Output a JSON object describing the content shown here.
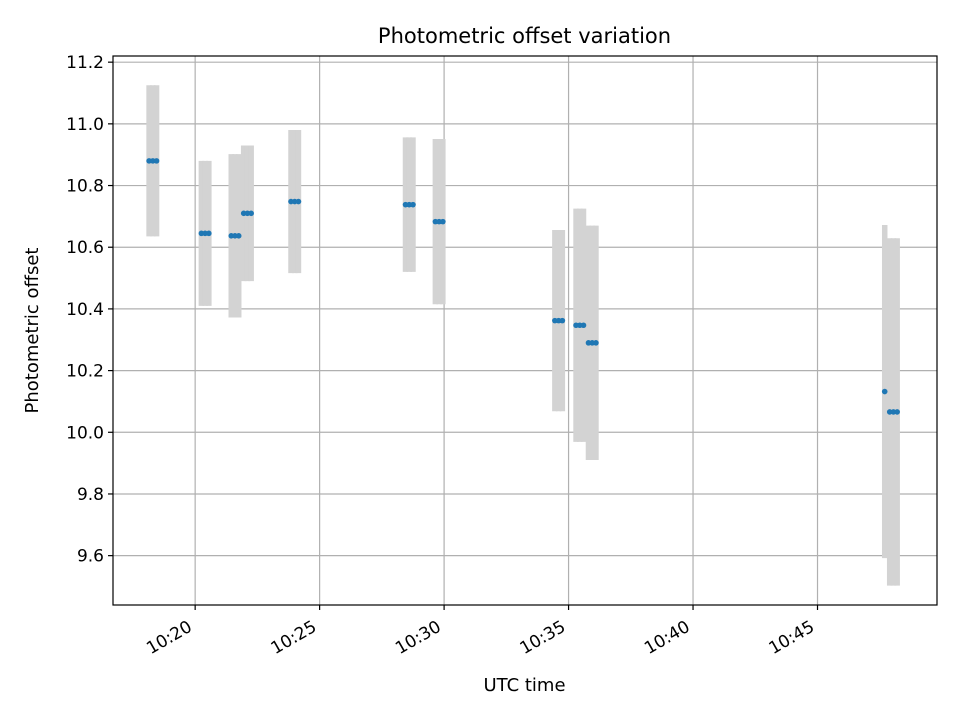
{
  "chart_data": {
    "type": "scatter",
    "title": "Photometric offset variation",
    "xlabel": "UTC time",
    "ylabel": "Photometric offset",
    "x_unit": "minutes after 10:00 UTC",
    "xlim": [
      16.7,
      49.8
    ],
    "ylim": [
      9.44,
      11.22
    ],
    "grid": true,
    "x_ticks": [
      {
        "value": 20,
        "label": "10:20"
      },
      {
        "value": 25,
        "label": "10:25"
      },
      {
        "value": 30,
        "label": "10:30"
      },
      {
        "value": 35,
        "label": "10:35"
      },
      {
        "value": 40,
        "label": "10:40"
      },
      {
        "value": 45,
        "label": "10:45"
      }
    ],
    "y_ticks": [
      {
        "value": 9.6,
        "label": "9.6"
      },
      {
        "value": 9.8,
        "label": "9.8"
      },
      {
        "value": 10.0,
        "label": "10.0"
      },
      {
        "value": 10.2,
        "label": "10.2"
      },
      {
        "value": 10.4,
        "label": "10.4"
      },
      {
        "value": 10.6,
        "label": "10.6"
      },
      {
        "value": 10.8,
        "label": "10.8"
      },
      {
        "value": 11.0,
        "label": "11.0"
      },
      {
        "value": 11.2,
        "label": "11.2"
      }
    ],
    "series": [
      {
        "name": "offset",
        "marker_color": "#1f77b4",
        "error_color": "#d3d3d3",
        "points": [
          {
            "x": 18.15,
            "y": 10.88,
            "err": 0.245
          },
          {
            "x": 18.3,
            "y": 10.88,
            "err": 0.245
          },
          {
            "x": 18.45,
            "y": 10.88,
            "err": 0.245
          },
          {
            "x": 20.25,
            "y": 10.645,
            "err": 0.235
          },
          {
            "x": 20.4,
            "y": 10.645,
            "err": 0.235
          },
          {
            "x": 20.55,
            "y": 10.645,
            "err": 0.235
          },
          {
            "x": 21.45,
            "y": 10.637,
            "err": 0.265
          },
          {
            "x": 21.6,
            "y": 10.637,
            "err": 0.265
          },
          {
            "x": 21.75,
            "y": 10.637,
            "err": 0.265
          },
          {
            "x": 21.95,
            "y": 10.71,
            "err": 0.22
          },
          {
            "x": 22.1,
            "y": 10.71,
            "err": 0.22
          },
          {
            "x": 22.25,
            "y": 10.71,
            "err": 0.22
          },
          {
            "x": 23.85,
            "y": 10.748,
            "err": 0.232
          },
          {
            "x": 24.0,
            "y": 10.748,
            "err": 0.232
          },
          {
            "x": 24.15,
            "y": 10.748,
            "err": 0.232
          },
          {
            "x": 28.45,
            "y": 10.738,
            "err": 0.218
          },
          {
            "x": 28.6,
            "y": 10.738,
            "err": 0.218
          },
          {
            "x": 28.75,
            "y": 10.738,
            "err": 0.218
          },
          {
            "x": 29.65,
            "y": 10.683,
            "err": 0.268
          },
          {
            "x": 29.8,
            "y": 10.683,
            "err": 0.268
          },
          {
            "x": 29.95,
            "y": 10.683,
            "err": 0.268
          },
          {
            "x": 34.45,
            "y": 10.362,
            "err": 0.294
          },
          {
            "x": 34.6,
            "y": 10.362,
            "err": 0.294
          },
          {
            "x": 34.75,
            "y": 10.362,
            "err": 0.294
          },
          {
            "x": 35.3,
            "y": 10.347,
            "err": 0.378
          },
          {
            "x": 35.45,
            "y": 10.347,
            "err": 0.378
          },
          {
            "x": 35.6,
            "y": 10.347,
            "err": 0.378
          },
          {
            "x": 35.8,
            "y": 10.29,
            "err": 0.38
          },
          {
            "x": 35.95,
            "y": 10.29,
            "err": 0.38
          },
          {
            "x": 36.1,
            "y": 10.29,
            "err": 0.38
          },
          {
            "x": 47.7,
            "y": 10.132,
            "err": 0.54
          },
          {
            "x": 47.9,
            "y": 10.066,
            "err": 0.563
          },
          {
            "x": 48.05,
            "y": 10.066,
            "err": 0.563
          },
          {
            "x": 48.2,
            "y": 10.066,
            "err": 0.563
          }
        ]
      }
    ]
  }
}
